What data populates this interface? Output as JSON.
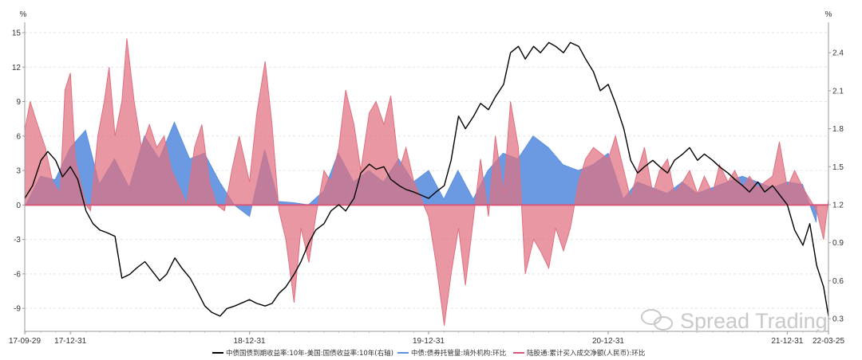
{
  "chart_data": {
    "type": "area",
    "left_unit": "%",
    "right_unit": "%",
    "left_axis": {
      "ylim": [
        -11,
        15.9
      ],
      "ticks": [
        15,
        12,
        9,
        6,
        3,
        0,
        -3,
        -6,
        -9
      ]
    },
    "right_axis": {
      "ylim": [
        0.2,
        2.64
      ],
      "ticks": [
        2.4,
        2.1,
        1.8,
        1.5,
        1.2,
        0.9,
        0.6,
        0.3
      ]
    },
    "x_labels": [
      "17-09-29",
      "17-12-31",
      "18-12-31",
      "19-12-31",
      "20-12-31",
      "21-12-31",
      "22-03-25"
    ],
    "grid": "horizontal dashed",
    "legend_position": "bottom",
    "watermark": "Spread Trading",
    "series": [
      {
        "name": "中债国债到期收益率:10年-美国:国债收益率:10年(右轴)",
        "type": "line",
        "axis": "right",
        "color": "#000000",
        "points": [
          [
            "2017-09-29",
            1.25
          ],
          [
            "2017-10-15",
            1.35
          ],
          [
            "2017-11-01",
            1.55
          ],
          [
            "2017-11-15",
            1.62
          ],
          [
            "2017-12-01",
            1.55
          ],
          [
            "2017-12-15",
            1.42
          ],
          [
            "2017-12-31",
            1.5
          ],
          [
            "2018-01-15",
            1.4
          ],
          [
            "2018-02-01",
            1.15
          ],
          [
            "2018-02-15",
            1.05
          ],
          [
            "2018-03-01",
            1.0
          ],
          [
            "2018-03-15",
            0.98
          ],
          [
            "2018-04-01",
            0.95
          ],
          [
            "2018-04-15",
            0.62
          ],
          [
            "2018-05-01",
            0.65
          ],
          [
            "2018-05-15",
            0.7
          ],
          [
            "2018-06-01",
            0.75
          ],
          [
            "2018-06-15",
            0.68
          ],
          [
            "2018-07-01",
            0.6
          ],
          [
            "2018-07-15",
            0.65
          ],
          [
            "2018-08-01",
            0.78
          ],
          [
            "2018-08-15",
            0.7
          ],
          [
            "2018-09-01",
            0.62
          ],
          [
            "2018-09-15",
            0.52
          ],
          [
            "2018-10-01",
            0.4
          ],
          [
            "2018-10-15",
            0.35
          ],
          [
            "2018-11-01",
            0.32
          ],
          [
            "2018-11-15",
            0.38
          ],
          [
            "2018-12-01",
            0.4
          ],
          [
            "2018-12-31",
            0.45
          ],
          [
            "2019-01-15",
            0.42
          ],
          [
            "2019-02-01",
            0.4
          ],
          [
            "2019-02-15",
            0.42
          ],
          [
            "2019-03-01",
            0.5
          ],
          [
            "2019-03-15",
            0.55
          ],
          [
            "2019-04-01",
            0.65
          ],
          [
            "2019-04-15",
            0.75
          ],
          [
            "2019-05-01",
            0.9
          ],
          [
            "2019-05-15",
            1.0
          ],
          [
            "2019-06-01",
            1.05
          ],
          [
            "2019-06-15",
            1.15
          ],
          [
            "2019-07-01",
            1.2
          ],
          [
            "2019-07-15",
            1.15
          ],
          [
            "2019-08-01",
            1.25
          ],
          [
            "2019-08-15",
            1.45
          ],
          [
            "2019-09-01",
            1.52
          ],
          [
            "2019-09-15",
            1.48
          ],
          [
            "2019-10-01",
            1.5
          ],
          [
            "2019-10-15",
            1.4
          ],
          [
            "2019-11-01",
            1.35
          ],
          [
            "2019-11-15",
            1.32
          ],
          [
            "2019-12-01",
            1.3
          ],
          [
            "2019-12-31",
            1.25
          ],
          [
            "2020-01-15",
            1.3
          ],
          [
            "2020-02-01",
            1.35
          ],
          [
            "2020-02-15",
            1.55
          ],
          [
            "2020-03-01",
            1.9
          ],
          [
            "2020-03-15",
            1.8
          ],
          [
            "2020-04-01",
            1.9
          ],
          [
            "2020-04-15",
            2.0
          ],
          [
            "2020-05-01",
            1.95
          ],
          [
            "2020-05-15",
            2.05
          ],
          [
            "2020-06-01",
            2.15
          ],
          [
            "2020-06-15",
            2.4
          ],
          [
            "2020-07-01",
            2.45
          ],
          [
            "2020-07-15",
            2.35
          ],
          [
            "2020-08-01",
            2.45
          ],
          [
            "2020-08-15",
            2.4
          ],
          [
            "2020-09-01",
            2.48
          ],
          [
            "2020-09-15",
            2.45
          ],
          [
            "2020-10-01",
            2.4
          ],
          [
            "2020-10-15",
            2.48
          ],
          [
            "2020-11-01",
            2.45
          ],
          [
            "2020-11-15",
            2.35
          ],
          [
            "2020-12-01",
            2.25
          ],
          [
            "2020-12-15",
            2.1
          ],
          [
            "2020-12-31",
            2.15
          ],
          [
            "2021-01-15",
            2.0
          ],
          [
            "2021-02-01",
            1.8
          ],
          [
            "2021-02-15",
            1.55
          ],
          [
            "2021-03-01",
            1.45
          ],
          [
            "2021-03-15",
            1.5
          ],
          [
            "2021-04-01",
            1.55
          ],
          [
            "2021-04-15",
            1.5
          ],
          [
            "2021-05-01",
            1.45
          ],
          [
            "2021-05-15",
            1.55
          ],
          [
            "2021-06-01",
            1.6
          ],
          [
            "2021-06-15",
            1.65
          ],
          [
            "2021-07-01",
            1.55
          ],
          [
            "2021-07-15",
            1.6
          ],
          [
            "2021-08-01",
            1.55
          ],
          [
            "2021-08-15",
            1.5
          ],
          [
            "2021-09-01",
            1.45
          ],
          [
            "2021-09-15",
            1.4
          ],
          [
            "2021-10-01",
            1.35
          ],
          [
            "2021-10-15",
            1.3
          ],
          [
            "2021-11-01",
            1.38
          ],
          [
            "2021-11-15",
            1.3
          ],
          [
            "2021-12-01",
            1.35
          ],
          [
            "2021-12-31",
            1.2
          ],
          [
            "2022-01-15",
            1.0
          ],
          [
            "2022-02-01",
            0.88
          ],
          [
            "2022-02-15",
            1.05
          ],
          [
            "2022-03-01",
            0.72
          ],
          [
            "2022-03-15",
            0.55
          ],
          [
            "2022-03-25",
            0.32
          ]
        ]
      },
      {
        "name": "中债:债券托管量:境外机构:环比",
        "type": "area",
        "axis": "left",
        "color": "#5b8fe0",
        "points": [
          [
            "2017-10-01",
            0.0
          ],
          [
            "2017-10-31",
            2.5
          ],
          [
            "2017-11-30",
            2.2
          ],
          [
            "2017-12-31",
            5.0
          ],
          [
            "2018-01-31",
            6.5
          ],
          [
            "2018-02-28",
            1.8
          ],
          [
            "2018-03-31",
            4.0
          ],
          [
            "2018-04-30",
            1.5
          ],
          [
            "2018-05-31",
            6.0
          ],
          [
            "2018-06-30",
            4.0
          ],
          [
            "2018-07-31",
            7.2
          ],
          [
            "2018-08-31",
            4.0
          ],
          [
            "2018-09-30",
            4.5
          ],
          [
            "2018-10-31",
            2.0
          ],
          [
            "2018-11-30",
            0.0
          ],
          [
            "2018-12-31",
            -1.0
          ],
          [
            "2019-01-31",
            4.8
          ],
          [
            "2019-02-28",
            0.3
          ],
          [
            "2019-03-31",
            0.2
          ],
          [
            "2019-04-30",
            0.0
          ],
          [
            "2019-05-31",
            1.2
          ],
          [
            "2019-06-30",
            4.5
          ],
          [
            "2019-07-31",
            2.0
          ],
          [
            "2019-08-31",
            3.0
          ],
          [
            "2019-09-30",
            2.0
          ],
          [
            "2019-10-31",
            4.0
          ],
          [
            "2019-11-30",
            2.0
          ],
          [
            "2019-12-31",
            3.0
          ],
          [
            "2020-01-31",
            0.5
          ],
          [
            "2020-02-29",
            3.0
          ],
          [
            "2020-03-31",
            0.5
          ],
          [
            "2020-04-30",
            3.0
          ],
          [
            "2020-05-31",
            4.5
          ],
          [
            "2020-06-30",
            4.0
          ],
          [
            "2020-07-31",
            6.0
          ],
          [
            "2020-08-31",
            5.0
          ],
          [
            "2020-09-30",
            3.5
          ],
          [
            "2020-10-31",
            3.0
          ],
          [
            "2020-11-30",
            3.5
          ],
          [
            "2020-12-31",
            4.5
          ],
          [
            "2021-01-31",
            0.5
          ],
          [
            "2021-02-28",
            2.0
          ],
          [
            "2021-03-31",
            1.5
          ],
          [
            "2021-04-30",
            1.0
          ],
          [
            "2021-05-31",
            2.0
          ],
          [
            "2021-06-30",
            1.0
          ],
          [
            "2021-07-31",
            1.5
          ],
          [
            "2021-08-31",
            2.0
          ],
          [
            "2021-09-30",
            2.5
          ],
          [
            "2021-10-31",
            2.0
          ],
          [
            "2021-11-30",
            1.5
          ],
          [
            "2021-12-31",
            2.0
          ],
          [
            "2022-01-31",
            1.8
          ],
          [
            "2022-02-28",
            -1.5
          ],
          [
            "2022-03-01",
            0.0
          ]
        ]
      },
      {
        "name": "陆股通:累计买入成交净额(人民币):环比",
        "type": "area",
        "axis": "left",
        "color": "#e0707f",
        "points": [
          [
            "2017-09-29",
            6.5
          ],
          [
            "2017-10-10",
            9.0
          ],
          [
            "2017-10-25",
            7.0
          ],
          [
            "2017-11-10",
            5.0
          ],
          [
            "2017-11-25",
            2.0
          ],
          [
            "2017-12-10",
            1.0
          ],
          [
            "2017-12-20",
            10.0
          ],
          [
            "2017-12-31",
            11.5
          ],
          [
            "2018-01-10",
            4.0
          ],
          [
            "2018-01-20",
            2.0
          ],
          [
            "2018-02-01",
            0.0
          ],
          [
            "2018-02-10",
            -0.5
          ],
          [
            "2018-02-25",
            6.0
          ],
          [
            "2018-03-10",
            9.0
          ],
          [
            "2018-03-20",
            12.0
          ],
          [
            "2018-04-01",
            6.0
          ],
          [
            "2018-04-15",
            9.0
          ],
          [
            "2018-04-25",
            14.5
          ],
          [
            "2018-05-10",
            9.0
          ],
          [
            "2018-05-25",
            5.0
          ],
          [
            "2018-06-10",
            7.0
          ],
          [
            "2018-06-25",
            5.0
          ],
          [
            "2018-07-10",
            6.0
          ],
          [
            "2018-07-25",
            3.0
          ],
          [
            "2018-08-10",
            1.5
          ],
          [
            "2018-08-25",
            0.0
          ],
          [
            "2018-09-10",
            5.0
          ],
          [
            "2018-09-25",
            7.0
          ],
          [
            "2018-10-10",
            2.0
          ],
          [
            "2018-10-25",
            0.0
          ],
          [
            "2018-11-10",
            -0.5
          ],
          [
            "2018-11-25",
            3.0
          ],
          [
            "2018-12-10",
            6.0
          ],
          [
            "2018-12-31",
            2.0
          ],
          [
            "2019-01-15",
            8.0
          ],
          [
            "2019-02-01",
            12.5
          ],
          [
            "2019-02-15",
            7.0
          ],
          [
            "2019-03-01",
            -0.5
          ],
          [
            "2019-03-15",
            -3.0
          ],
          [
            "2019-04-01",
            -8.5
          ],
          [
            "2019-04-15",
            -2.0
          ],
          [
            "2019-05-01",
            -5.0
          ],
          [
            "2019-05-15",
            -1.0
          ],
          [
            "2019-06-01",
            3.0
          ],
          [
            "2019-06-15",
            2.0
          ],
          [
            "2019-07-01",
            5.0
          ],
          [
            "2019-07-15",
            10.0
          ],
          [
            "2019-08-01",
            7.0
          ],
          [
            "2019-08-15",
            3.0
          ],
          [
            "2019-09-01",
            8.0
          ],
          [
            "2019-09-15",
            9.0
          ],
          [
            "2019-10-01",
            7.0
          ],
          [
            "2019-10-15",
            9.5
          ],
          [
            "2019-11-01",
            3.0
          ],
          [
            "2019-11-15",
            5.0
          ],
          [
            "2019-12-01",
            2.0
          ],
          [
            "2019-12-31",
            -1.0
          ],
          [
            "2020-01-15",
            -5.0
          ],
          [
            "2020-02-01",
            -10.5
          ],
          [
            "2020-02-15",
            -6.0
          ],
          [
            "2020-03-01",
            -2.0
          ],
          [
            "2020-03-15",
            -7.0
          ],
          [
            "2020-04-01",
            -1.0
          ],
          [
            "2020-04-15",
            4.0
          ],
          [
            "2020-05-01",
            -1.0
          ],
          [
            "2020-05-15",
            6.0
          ],
          [
            "2020-06-01",
            1.0
          ],
          [
            "2020-06-15",
            9.0
          ],
          [
            "2020-07-01",
            5.0
          ],
          [
            "2020-07-15",
            -6.0
          ],
          [
            "2020-08-01",
            -3.0
          ],
          [
            "2020-08-15",
            -4.0
          ],
          [
            "2020-09-01",
            -5.5
          ],
          [
            "2020-09-15",
            -2.0
          ],
          [
            "2020-10-01",
            -4.0
          ],
          [
            "2020-10-15",
            -2.0
          ],
          [
            "2020-11-01",
            2.0
          ],
          [
            "2020-11-15",
            4.0
          ],
          [
            "2020-12-01",
            5.0
          ],
          [
            "2020-12-31",
            4.0
          ],
          [
            "2021-01-15",
            6.0
          ],
          [
            "2021-02-01",
            3.0
          ],
          [
            "2021-02-15",
            0.5
          ],
          [
            "2021-03-01",
            3.0
          ],
          [
            "2021-03-15",
            5.0
          ],
          [
            "2021-04-01",
            1.0
          ],
          [
            "2021-04-15",
            3.0
          ],
          [
            "2021-05-01",
            4.0
          ],
          [
            "2021-05-15",
            1.0
          ],
          [
            "2021-06-01",
            2.0
          ],
          [
            "2021-06-15",
            3.0
          ],
          [
            "2021-07-01",
            1.0
          ],
          [
            "2021-07-15",
            2.5
          ],
          [
            "2021-08-01",
            1.0
          ],
          [
            "2021-08-15",
            3.5
          ],
          [
            "2021-09-01",
            2.0
          ],
          [
            "2021-09-15",
            3.0
          ],
          [
            "2021-10-01",
            1.5
          ],
          [
            "2021-10-15",
            2.5
          ],
          [
            "2021-11-01",
            1.5
          ],
          [
            "2021-11-15",
            2.0
          ],
          [
            "2021-12-01",
            2.5
          ],
          [
            "2021-12-15",
            5.5
          ],
          [
            "2021-12-31",
            1.5
          ],
          [
            "2022-01-15",
            3.0
          ],
          [
            "2022-02-01",
            1.5
          ],
          [
            "2022-02-15",
            0.5
          ],
          [
            "2022-03-01",
            -0.5
          ],
          [
            "2022-03-15",
            -3.0
          ],
          [
            "2022-03-25",
            0.5
          ]
        ]
      }
    ]
  }
}
